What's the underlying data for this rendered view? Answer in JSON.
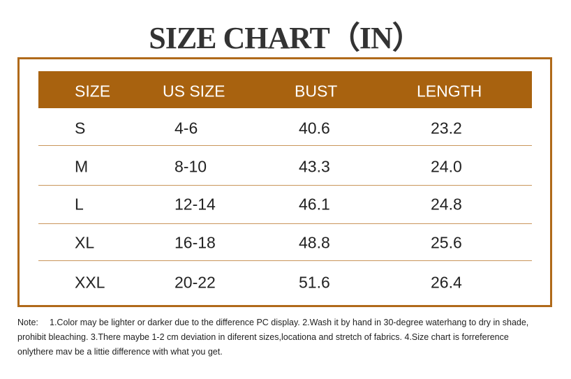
{
  "title": "SIZE CHART（IN）",
  "table": {
    "header": [
      "SIZE",
      "US SIZE",
      "BUST",
      "LENGTH"
    ],
    "rows": [
      [
        "S",
        "4-6",
        "40.6",
        "23.2"
      ],
      [
        "M",
        "8-10",
        "43.3",
        "24.0"
      ],
      [
        "L",
        "12-14",
        "46.1",
        "24.8"
      ],
      [
        "XL",
        "16-18",
        "48.8",
        "25.6"
      ],
      [
        "XXL",
        "20-22",
        "51.6",
        "26.4"
      ]
    ]
  },
  "note": {
    "label": "Note:",
    "lines": [
      "1.Color may be lighter or darker due to the difference PC display.  2.Wash it by hand in 30-degree waterhang to dry in shade,",
      "prohibit bleaching.  3.There maybe 1-2 cm deviation in diferent sizes,locationa and stretch of fabrics.  4.Size chart is forreference",
      "onlythere mav be a littie difference with what you get."
    ]
  }
}
